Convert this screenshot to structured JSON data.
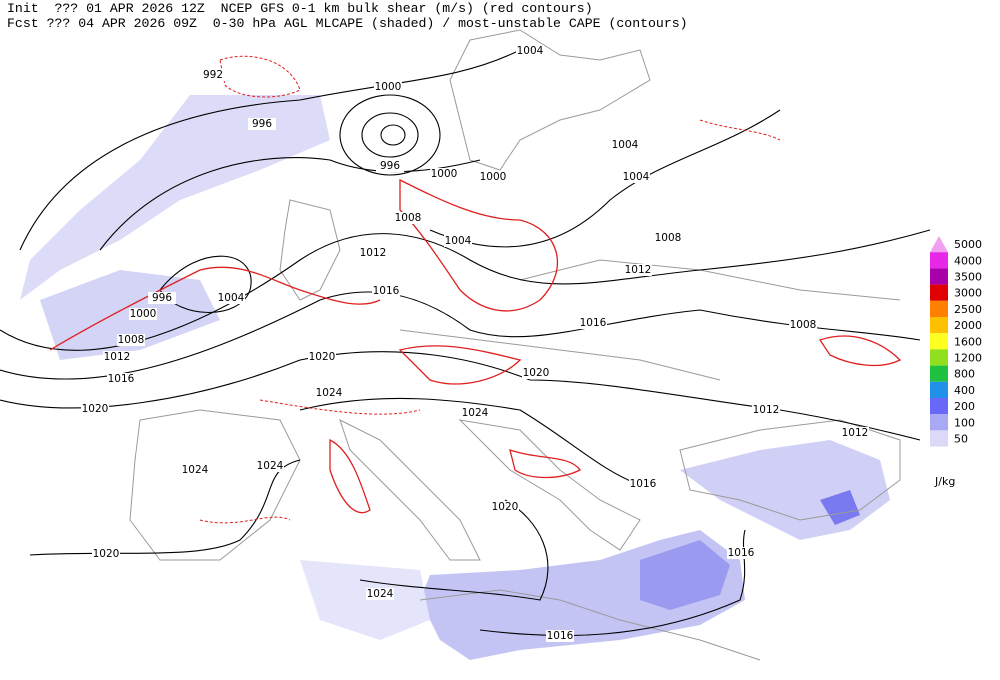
{
  "header": {
    "line1": "Init  ??? 01 APR 2026 12Z  NCEP GFS 0-1 km bulk shear (m/s) (red contours)",
    "line2": "Fcst ??? 04 APR 2026 09Z  0-30 hPa AGL MLCAPE (shaded) / most-unstable CAPE (contours)"
  },
  "isobar_labels": [
    "992",
    "996",
    "1000",
    "996",
    "1000",
    "1000",
    "1004",
    "1004",
    "1004",
    "1008",
    "1008",
    "1004",
    "1012",
    "1012",
    "996",
    "1004",
    "1000",
    "1016",
    "1008",
    "1012",
    "1016",
    "1020",
    "1016",
    "1020",
    "1008",
    "1024",
    "1020",
    "1024",
    "1012",
    "1012",
    "1024",
    "1024",
    "1016",
    "1020",
    "1016",
    "1020",
    "1024",
    "1016"
  ],
  "legend": {
    "items": [
      {
        "value": 5000,
        "color": "#f0a0f0"
      },
      {
        "value": 4000,
        "color": "#e828e8"
      },
      {
        "value": 3500,
        "color": "#a800a8"
      },
      {
        "value": 3000,
        "color": "#e00000"
      },
      {
        "value": 2500,
        "color": "#ff8000"
      },
      {
        "value": 2000,
        "color": "#ffc000"
      },
      {
        "value": 1600,
        "color": "#ffff20"
      },
      {
        "value": 1200,
        "color": "#90e020"
      },
      {
        "value": 800,
        "color": "#20c040"
      },
      {
        "value": 400,
        "color": "#2090e8"
      },
      {
        "value": 200,
        "color": "#6868f8"
      },
      {
        "value": 100,
        "color": "#a8a8f4"
      },
      {
        "value": 50,
        "color": "#dadaf8"
      }
    ],
    "unit": "J/kg"
  }
}
